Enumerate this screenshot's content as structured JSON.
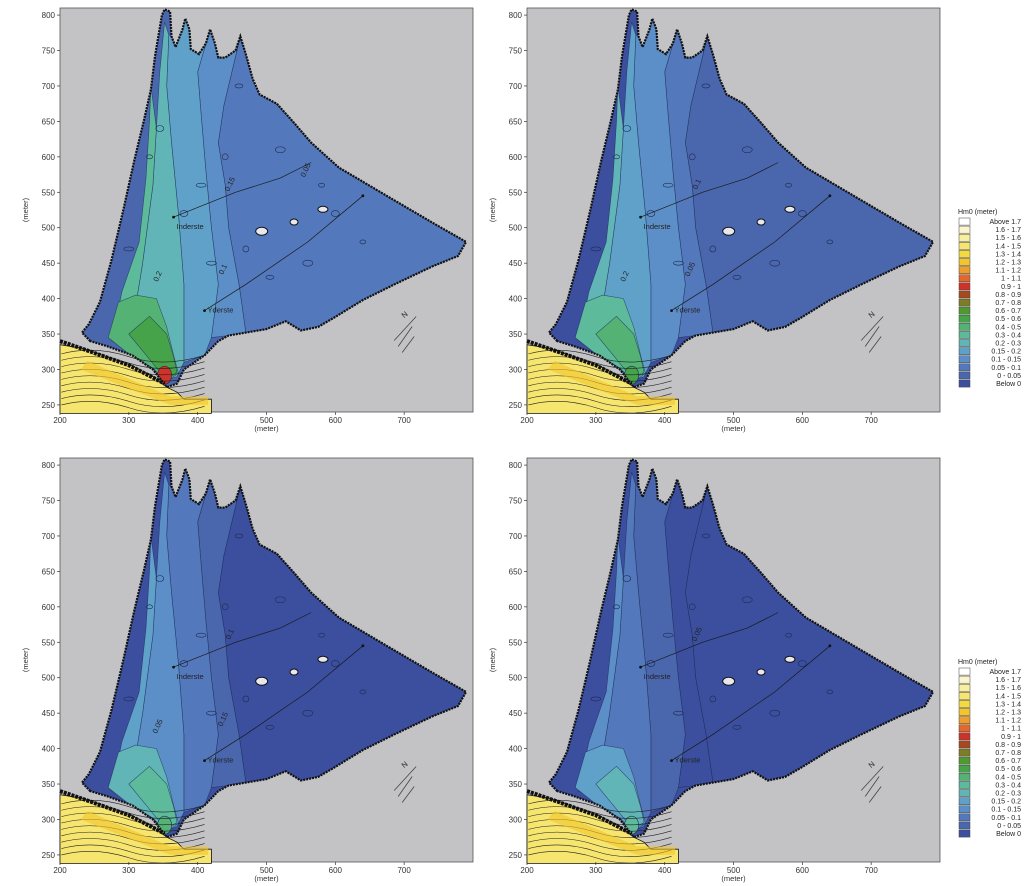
{
  "figure": {
    "axis_label": "(meter)",
    "y_ticks": [
      "800",
      "750",
      "700",
      "650",
      "600",
      "550",
      "500",
      "450",
      "400",
      "350",
      "300",
      "250"
    ],
    "x_ticks": [
      "200",
      "300",
      "400",
      "500",
      "600",
      "700"
    ],
    "annotations": {
      "inner": "Inderste",
      "outer": "Yderste"
    },
    "north_label": "N"
  },
  "legend": {
    "title": "Hm0 (meter)",
    "items": [
      {
        "label": "Above  1.7",
        "color": "#ffffff"
      },
      {
        "label": "1.6 -  1.7",
        "color": "#fbf5cf"
      },
      {
        "label": "1.5 -  1.6",
        "color": "#f8ee9f"
      },
      {
        "label": "1.4 -  1.5",
        "color": "#f6e56f"
      },
      {
        "label": "1.3 -  1.4",
        "color": "#f4da3e"
      },
      {
        "label": "1.2 -  1.3",
        "color": "#f3c52a"
      },
      {
        "label": "1.1 -  1.2",
        "color": "#ef9d2b"
      },
      {
        "label": "1 -  1.1",
        "color": "#e4682c"
      },
      {
        "label": "0.9 -  1",
        "color": "#cf3227"
      },
      {
        "label": "0.8 -  0.9",
        "color": "#a8481f"
      },
      {
        "label": "0.7 -  0.8",
        "color": "#7c7d26"
      },
      {
        "label": "0.6 -  0.7",
        "color": "#4f9a2f"
      },
      {
        "label": "0.5 -  0.6",
        "color": "#46a34a"
      },
      {
        "label": "0.4 -  0.5",
        "color": "#53b274"
      },
      {
        "label": "0.3 -  0.4",
        "color": "#5dba9b"
      },
      {
        "label": "0.2 -  0.3",
        "color": "#62b5b6"
      },
      {
        "label": "0.15 -  0.2",
        "color": "#5fa1c8"
      },
      {
        "label": "0.1 - 0.15",
        "color": "#5c8fc8"
      },
      {
        "label": "0.05 -  0.1",
        "color": "#5378bb"
      },
      {
        "label": "0 - 0.05",
        "color": "#4a66ad"
      },
      {
        "label": "Below   0",
        "color": "#3b4f9e"
      }
    ]
  },
  "chart_data": [
    {
      "type": "heatmap",
      "panel": "top-left",
      "xlabel": "(meter)",
      "ylabel": "(meter)",
      "xlim": [
        200,
        800
      ],
      "ylim": [
        240,
        810
      ],
      "grid": false,
      "color_quantity": "Hm0 (meter)",
      "dominant_ranges": [
        "0.15 - 0.2",
        "0.2 - 0.3",
        "0.3 - 0.4",
        "0.4 - 0.5"
      ],
      "contour_labels": [
        "0.15",
        "0.1",
        "0.2",
        "0.05"
      ],
      "annotations": [
        {
          "text": "Inderste",
          "x": 365,
          "y": 512
        },
        {
          "text": "Yderste",
          "x": 410,
          "y": 383
        }
      ]
    },
    {
      "type": "heatmap",
      "panel": "top-right",
      "xlabel": "(meter)",
      "ylabel": "(meter)",
      "xlim": [
        200,
        800
      ],
      "ylim": [
        240,
        810
      ],
      "grid": false,
      "color_quantity": "Hm0 (meter)",
      "dominant_ranges": [
        "0.1 - 0.15",
        "0.15 - 0.2",
        "0.2 - 0.3",
        "0.3 - 0.4"
      ],
      "contour_labels": [
        "0.1",
        "0.05",
        "0.2"
      ],
      "annotations": [
        {
          "text": "Inderste",
          "x": 365,
          "y": 512
        },
        {
          "text": "Yderste",
          "x": 410,
          "y": 383
        }
      ]
    },
    {
      "type": "heatmap",
      "panel": "bottom-left",
      "xlabel": "(meter)",
      "ylabel": "(meter)",
      "xlim": [
        200,
        800
      ],
      "ylim": [
        240,
        810
      ],
      "grid": false,
      "color_quantity": "Hm0 (meter)",
      "dominant_ranges": [
        "0.05 - 0.1",
        "0.1 - 0.15",
        "0.15 - 0.2",
        "0.3 - 0.4"
      ],
      "contour_labels": [
        "0.1",
        "0.15",
        "0.05"
      ],
      "annotations": [
        {
          "text": "Inderste",
          "x": 365,
          "y": 512
        },
        {
          "text": "Yderste",
          "x": 410,
          "y": 383
        }
      ]
    },
    {
      "type": "heatmap",
      "panel": "bottom-right",
      "xlabel": "(meter)",
      "ylabel": "(meter)",
      "xlim": [
        200,
        800
      ],
      "ylim": [
        240,
        810
      ],
      "grid": false,
      "color_quantity": "Hm0 (meter)",
      "dominant_ranges": [
        "0 - 0.05",
        "0.05 - 0.1",
        "0.1 - 0.15"
      ],
      "contour_labels": [
        "0.05"
      ],
      "annotations": [
        {
          "text": "Inderste",
          "x": 365,
          "y": 512
        },
        {
          "text": "Yderste",
          "x": 410,
          "y": 383
        }
      ]
    }
  ]
}
